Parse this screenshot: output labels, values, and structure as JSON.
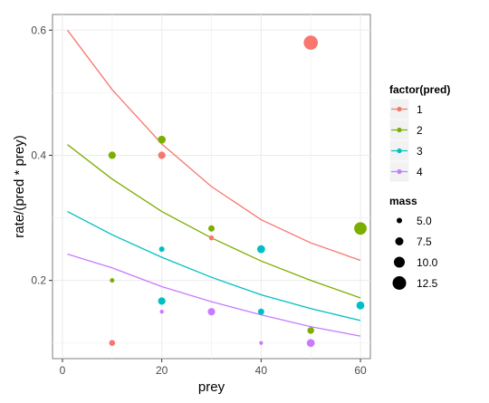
{
  "chart_data": {
    "type": "scatter",
    "xlabel": "prey",
    "ylabel": "rate/(pred * prey)",
    "xlim": [
      -2,
      62
    ],
    "ylim": [
      0.075,
      0.625
    ],
    "x_ticks": [
      0,
      20,
      40,
      60
    ],
    "x_tick_labels": [
      "0",
      "20",
      "40",
      "60"
    ],
    "y_ticks": [
      0.2,
      0.4,
      0.6
    ],
    "y_tick_labels": [
      "0.2",
      "0.4",
      "0.6"
    ],
    "grid": true,
    "background": "#ffffff",
    "grid_color": "#ebebeb",
    "legend": {
      "placement": "right",
      "color_title": "factor(pred)",
      "size_title": "mass",
      "size_entries": [
        {
          "label": "5.0",
          "value": 5.0
        },
        {
          "label": "7.5",
          "value": 7.5
        },
        {
          "label": "10.0",
          "value": 10.0
        },
        {
          "label": "12.5",
          "value": 12.5
        }
      ]
    },
    "series": [
      {
        "name": "1",
        "color": "#F8766D",
        "points": [
          {
            "x": 10,
            "y": 0.1,
            "mass": 5.5
          },
          {
            "x": 20,
            "y": 0.4,
            "mass": 6.8
          },
          {
            "x": 30,
            "y": 0.268,
            "mass": 4.6
          },
          {
            "x": 50,
            "y": 0.58,
            "mass": 13.0
          }
        ],
        "curve": [
          {
            "x": 1,
            "y": 0.6
          },
          {
            "x": 10,
            "y": 0.505
          },
          {
            "x": 20,
            "y": 0.418
          },
          {
            "x": 30,
            "y": 0.35
          },
          {
            "x": 40,
            "y": 0.297
          },
          {
            "x": 50,
            "y": 0.26
          },
          {
            "x": 60,
            "y": 0.232
          }
        ]
      },
      {
        "name": "2",
        "color": "#7CAE00",
        "points": [
          {
            "x": 10,
            "y": 0.4,
            "mass": 6.8
          },
          {
            "x": 10,
            "y": 0.2,
            "mass": 4.2
          },
          {
            "x": 20,
            "y": 0.425,
            "mass": 7.2
          },
          {
            "x": 30,
            "y": 0.283,
            "mass": 5.8
          },
          {
            "x": 50,
            "y": 0.12,
            "mass": 6.2
          },
          {
            "x": 60,
            "y": 0.283,
            "mass": 11.5
          }
        ],
        "curve": [
          {
            "x": 1,
            "y": 0.417
          },
          {
            "x": 10,
            "y": 0.362
          },
          {
            "x": 20,
            "y": 0.31
          },
          {
            "x": 30,
            "y": 0.268
          },
          {
            "x": 40,
            "y": 0.231
          },
          {
            "x": 50,
            "y": 0.2
          },
          {
            "x": 60,
            "y": 0.172
          }
        ]
      },
      {
        "name": "3",
        "color": "#00BFC4",
        "points": [
          {
            "x": 20,
            "y": 0.25,
            "mass": 5.0
          },
          {
            "x": 20,
            "y": 0.167,
            "mass": 6.8
          },
          {
            "x": 40,
            "y": 0.25,
            "mass": 7.3
          },
          {
            "x": 40,
            "y": 0.15,
            "mass": 5.8
          },
          {
            "x": 60,
            "y": 0.16,
            "mass": 7.3
          }
        ],
        "curve": [
          {
            "x": 1,
            "y": 0.31
          },
          {
            "x": 10,
            "y": 0.273
          },
          {
            "x": 20,
            "y": 0.237
          },
          {
            "x": 30,
            "y": 0.205
          },
          {
            "x": 40,
            "y": 0.177
          },
          {
            "x": 50,
            "y": 0.155
          },
          {
            "x": 60,
            "y": 0.136
          }
        ]
      },
      {
        "name": "4",
        "color": "#C77CFF",
        "points": [
          {
            "x": 20,
            "y": 0.15,
            "mass": 3.6
          },
          {
            "x": 30,
            "y": 0.15,
            "mass": 6.8
          },
          {
            "x": 40,
            "y": 0.1,
            "mass": 3.4
          },
          {
            "x": 50,
            "y": 0.1,
            "mass": 7.3
          }
        ],
        "curve": [
          {
            "x": 1,
            "y": 0.242
          },
          {
            "x": 10,
            "y": 0.22
          },
          {
            "x": 20,
            "y": 0.19
          },
          {
            "x": 30,
            "y": 0.166
          },
          {
            "x": 40,
            "y": 0.145
          },
          {
            "x": 50,
            "y": 0.126
          },
          {
            "x": 60,
            "y": 0.111
          }
        ]
      }
    ]
  }
}
